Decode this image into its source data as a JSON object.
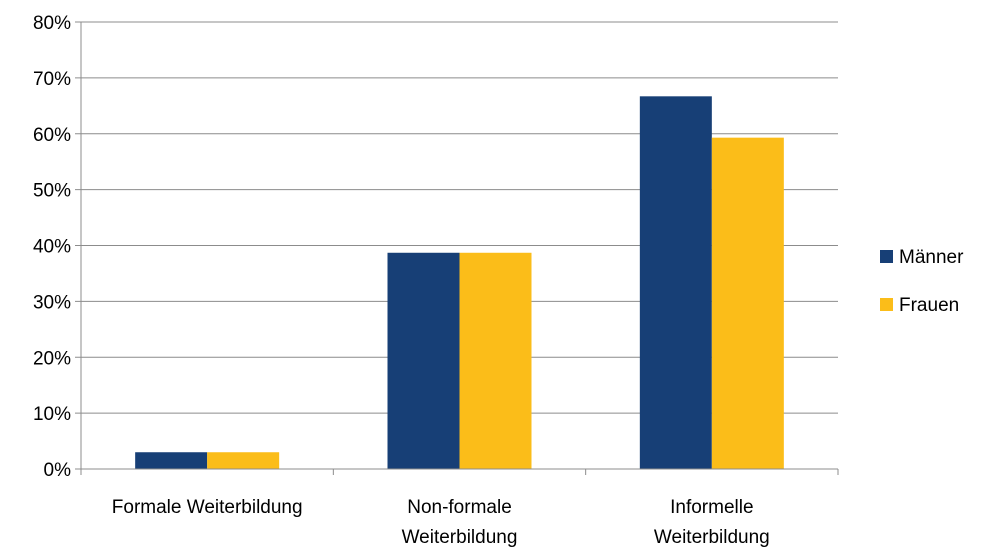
{
  "chart_data": {
    "type": "bar",
    "categories": [
      [
        "Formale Weiterbildung"
      ],
      [
        "Non-formale",
        "Weiterbildung"
      ],
      [
        "Informelle",
        "Weiterbildung"
      ]
    ],
    "series": [
      {
        "name": "Männer",
        "color": "#173f76",
        "values": [
          3.0,
          38.7,
          66.7
        ]
      },
      {
        "name": "Frauen",
        "color": "#fbbd19",
        "values": [
          3.0,
          38.7,
          59.3
        ]
      }
    ],
    "ylim": [
      0,
      80
    ],
    "yticks": [
      0,
      10,
      20,
      30,
      40,
      50,
      60,
      70,
      80
    ],
    "ytick_suffix": "%",
    "grid": true,
    "legend_position": "right",
    "title": "",
    "xlabel": "",
    "ylabel": ""
  }
}
